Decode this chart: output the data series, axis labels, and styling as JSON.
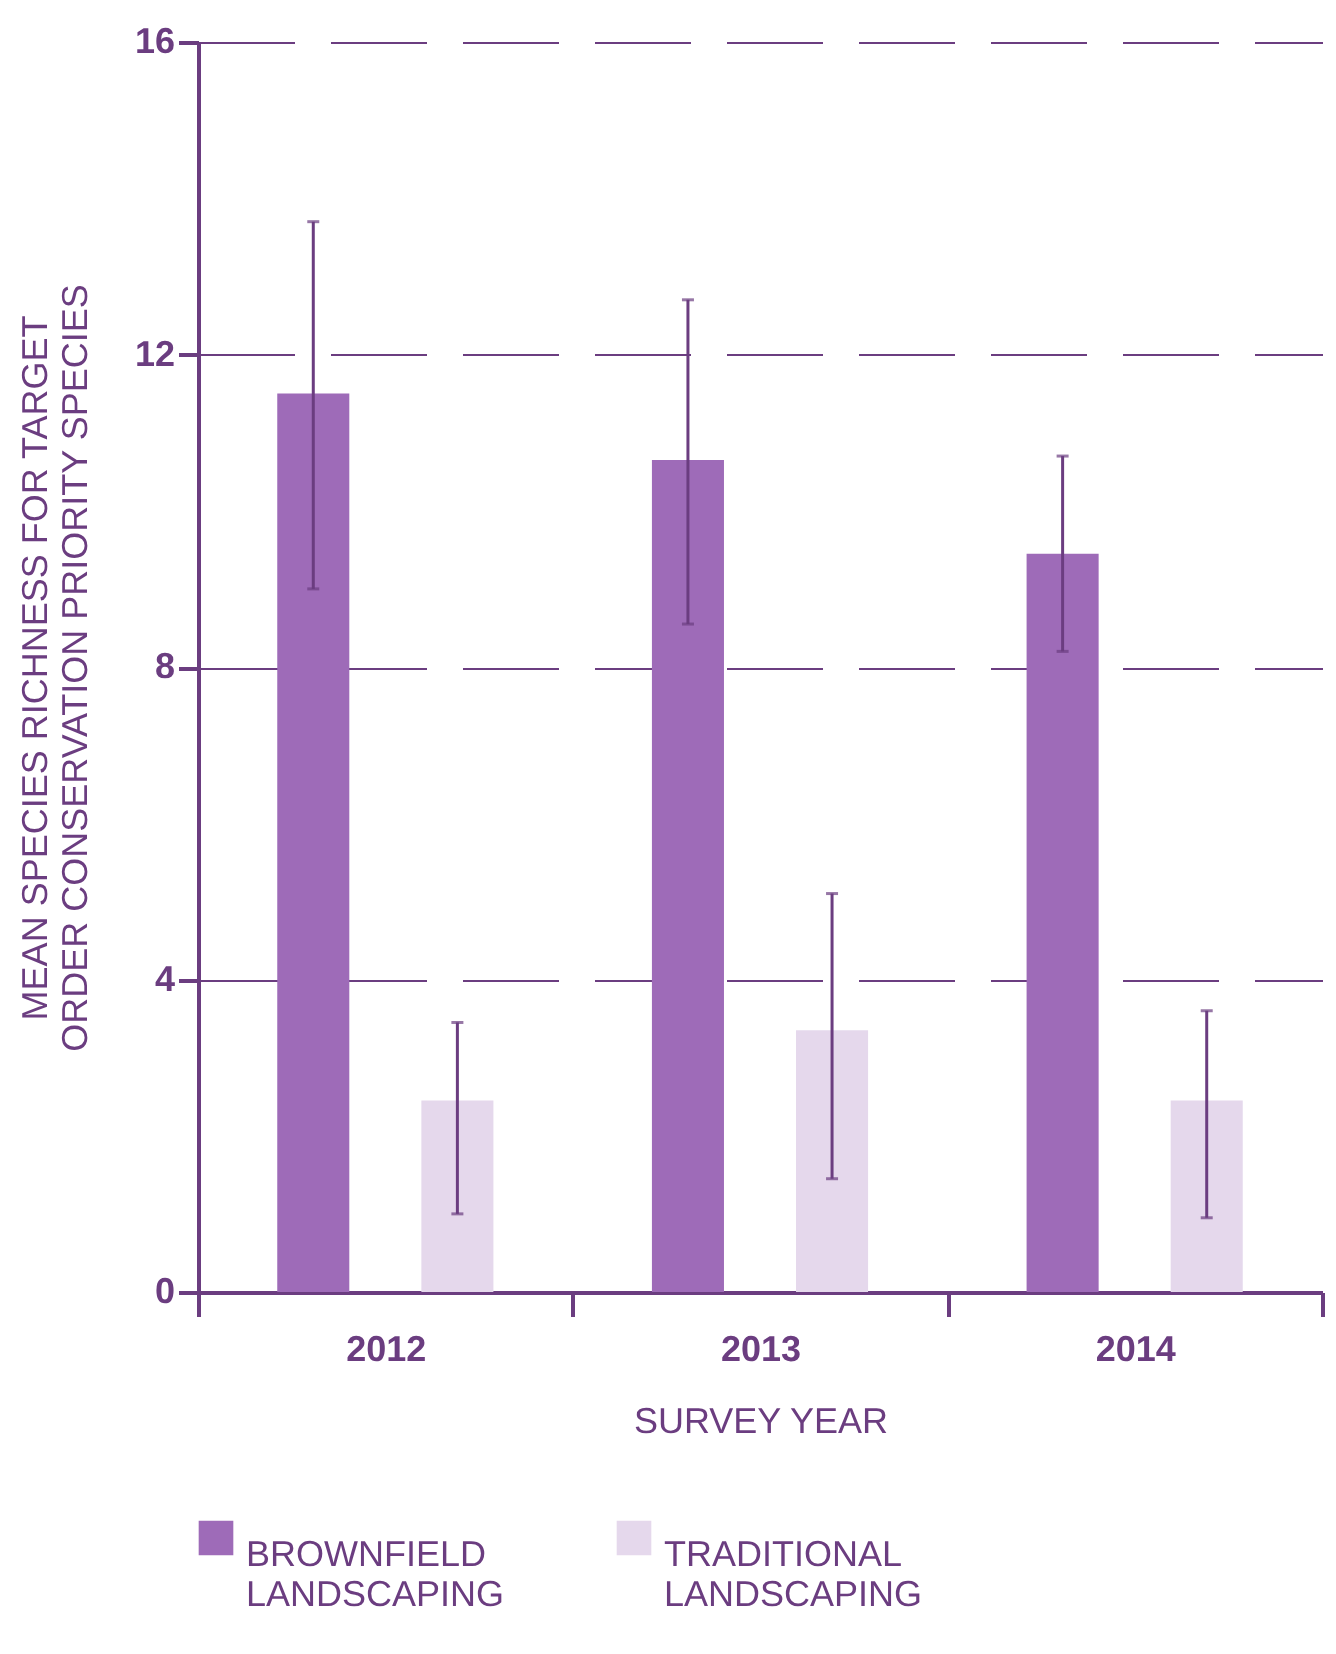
{
  "chart_data": {
    "type": "bar",
    "xlabel": "SURVEY YEAR",
    "ylabel": "MEAN SPECIES RICHNESS FOR TARGET ORDER CONSERVATION PRIORITY SPECIES",
    "categories": [
      "2012",
      "2013",
      "2014"
    ],
    "series": [
      {
        "name": "BROWNFIELD LANDSCAPING",
        "color": "#9e6bb8",
        "values": [
          11.5,
          10.65,
          9.45
        ],
        "errors": [
          [
            9.0,
            13.7
          ],
          [
            8.55,
            12.7
          ],
          [
            8.2,
            10.7
          ]
        ]
      },
      {
        "name": "TRADITIONAL LANDSCAPING",
        "color": "#e5d8ec",
        "values": [
          2.45,
          3.35,
          2.45
        ],
        "errors": [
          [
            1.0,
            3.45
          ],
          [
            1.45,
            5.1
          ],
          [
            0.95,
            3.6
          ]
        ]
      }
    ],
    "ylim": [
      0,
      16
    ],
    "yticks": [
      0,
      4,
      8,
      12,
      16
    ],
    "grid": "y",
    "legend": "bottom"
  }
}
